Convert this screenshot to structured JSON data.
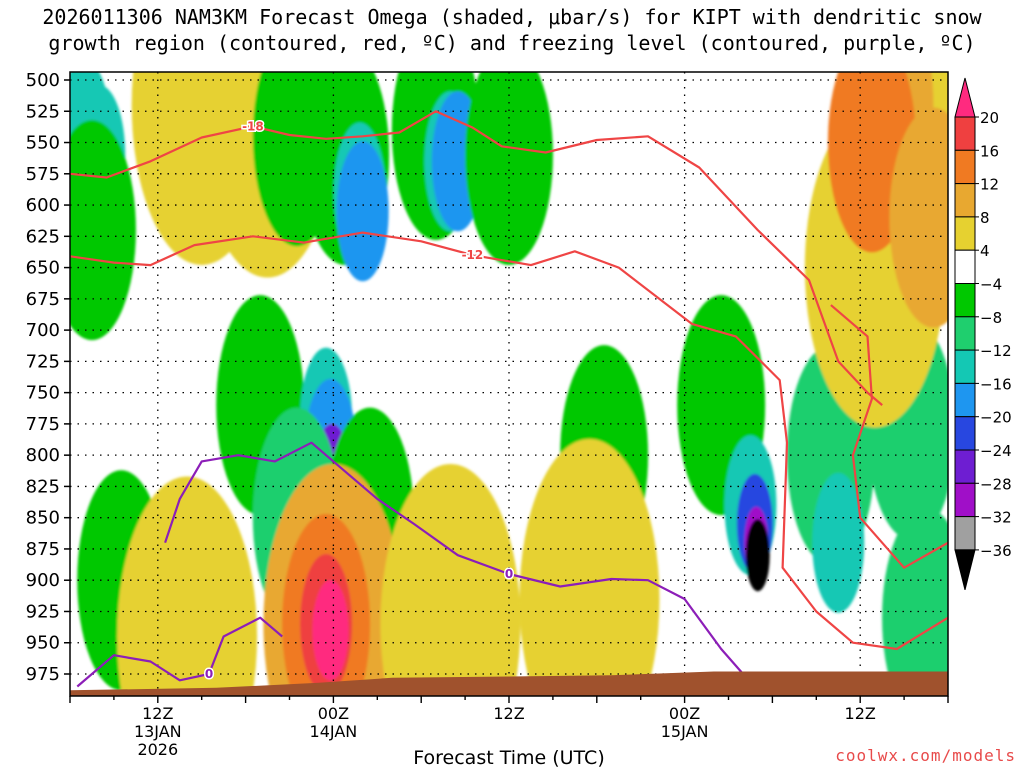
{
  "header": {
    "title_line1": "2026011306 NAM3KM Forecast Omega (shaded, μbar/s) for KIPT with dendritic snow",
    "title_line2": "growth region (contoured, red, ºC) and freezing level (contoured, purple, ºC)"
  },
  "credit": "coolwx.com/models",
  "chart_data": {
    "type": "heatmap",
    "title": "2026011306 NAM3KM Forecast Omega (shaded, μbar/s) for KIPT with dendritic snow growth region (contoured, red, ºC) and freezing level (contoured, purple, ºC)",
    "xlabel": "Forecast Time (UTC)",
    "ylabel": "",
    "x_hours": [
      0,
      60
    ],
    "y_levels": [
      500,
      525,
      550,
      575,
      600,
      625,
      650,
      675,
      700,
      725,
      750,
      775,
      800,
      825,
      850,
      875,
      900,
      925,
      950,
      975
    ],
    "ylim": [
      500,
      990
    ],
    "x_ticks": [
      {
        "hour": 6,
        "label": "12Z",
        "date": "13JAN",
        "year": "2026"
      },
      {
        "hour": 18,
        "label": "00Z",
        "date": "14JAN",
        "year": ""
      },
      {
        "hour": 30,
        "label": "12Z",
        "date": "",
        "year": ""
      },
      {
        "hour": 42,
        "label": "00Z",
        "date": "15JAN",
        "year": ""
      },
      {
        "hour": 54,
        "label": "12Z",
        "date": "",
        "year": ""
      }
    ],
    "colorbar": {
      "labels": [
        "20",
        "16",
        "12",
        "8",
        "4",
        "−4",
        "−8",
        "−12",
        "−16",
        "−20",
        "−24",
        "−28",
        "−32",
        "−36"
      ],
      "colors": [
        "#ff2a7f",
        "#ef4040",
        "#f07a22",
        "#e8a830",
        "#e6d130",
        "#ffffff",
        "#00c800",
        "#1fcf6e",
        "#14c8b4",
        "#1e96f0",
        "#2847e0",
        "#6e1ed2",
        "#a00fc8",
        "#a0a0a0",
        "#000000"
      ]
    },
    "omega_cells": [
      {
        "hour": 1.0,
        "level": 540,
        "value": -14
      },
      {
        "hour": 2.0,
        "level": 560,
        "value": -14
      },
      {
        "hour": 1.5,
        "level": 620,
        "value": -8
      },
      {
        "hour": 9.0,
        "level": 520,
        "value": 4
      },
      {
        "hour": 13.5,
        "level": 530,
        "value": 4
      },
      {
        "hour": 15.5,
        "level": 545,
        "value": -8
      },
      {
        "hour": 18.8,
        "level": 560,
        "value": -8
      },
      {
        "hour": 19.8,
        "level": 590,
        "value": -14
      },
      {
        "hour": 20.0,
        "level": 605,
        "value": -18
      },
      {
        "hour": 25.0,
        "level": 540,
        "value": -8
      },
      {
        "hour": 26.0,
        "level": 565,
        "value": -14
      },
      {
        "hour": 26.5,
        "level": 565,
        "value": -18
      },
      {
        "hour": 30.0,
        "level": 560,
        "value": -8
      },
      {
        "hour": 13.0,
        "level": 760,
        "value": -8
      },
      {
        "hour": 17.5,
        "level": 770,
        "value": -14
      },
      {
        "hour": 17.8,
        "level": 795,
        "value": -18
      },
      {
        "hour": 17.9,
        "level": 815,
        "value": -26
      },
      {
        "hour": 15.5,
        "level": 850,
        "value": -10
      },
      {
        "hour": 20.5,
        "level": 850,
        "value": -8
      },
      {
        "hour": 36.5,
        "level": 800,
        "value": -8
      },
      {
        "hour": 44.5,
        "level": 760,
        "value": -8
      },
      {
        "hour": 46.5,
        "level": 840,
        "value": -14
      },
      {
        "hour": 46.8,
        "level": 855,
        "value": -22
      },
      {
        "hour": 46.9,
        "level": 870,
        "value": -30
      },
      {
        "hour": 47.0,
        "level": 880,
        "value": -36
      },
      {
        "hour": 52.0,
        "level": 800,
        "value": -10
      },
      {
        "hour": 52.5,
        "level": 870,
        "value": -14
      },
      {
        "hour": 58.5,
        "level": 930,
        "value": -12
      },
      {
        "hour": 57.5,
        "level": 780,
        "value": -10
      },
      {
        "hour": 55.0,
        "level": 650,
        "value": 4
      },
      {
        "hour": 57.0,
        "level": 560,
        "value": 4
      },
      {
        "hour": 56.0,
        "level": 520,
        "value": 8
      },
      {
        "hour": 54.8,
        "level": 550,
        "value": 10
      },
      {
        "hour": 59.0,
        "level": 610,
        "value": 8
      },
      {
        "hour": 3.5,
        "level": 900,
        "value": -8
      },
      {
        "hour": 8.0,
        "level": 945,
        "value": 4
      },
      {
        "hour": 18.0,
        "level": 935,
        "value": 6
      },
      {
        "hour": 17.5,
        "level": 935,
        "value": 10
      },
      {
        "hour": 17.5,
        "level": 935,
        "value": 14
      },
      {
        "hour": 17.8,
        "level": 940,
        "value": 20
      },
      {
        "hour": 26.0,
        "level": 935,
        "value": 4
      },
      {
        "hour": 35.5,
        "level": 915,
        "value": 4
      }
    ],
    "contours": [
      {
        "name": "dendritic -18",
        "color": "#ef4545",
        "label": "-18",
        "points": [
          [
            0.0,
            575
          ],
          [
            2.5,
            578
          ],
          [
            5.5,
            565
          ],
          [
            9.0,
            546
          ],
          [
            12.5,
            537
          ],
          [
            15.0,
            544
          ],
          [
            17.5,
            547
          ],
          [
            20.0,
            545
          ],
          [
            22.5,
            542
          ],
          [
            25.0,
            525
          ],
          [
            27.5,
            538
          ],
          [
            29.5,
            553
          ],
          [
            32.5,
            558
          ],
          [
            36.0,
            548
          ],
          [
            39.5,
            545
          ],
          [
            43.0,
            570
          ],
          [
            47.0,
            620
          ],
          [
            50.5,
            660
          ],
          [
            52.5,
            725
          ],
          [
            54.5,
            750
          ],
          [
            55.5,
            760
          ]
        ]
      },
      {
        "name": "dendritic -12",
        "color": "#ef4545",
        "label": "-12",
        "points": [
          [
            0.0,
            641
          ],
          [
            3.0,
            646
          ],
          [
            5.5,
            648
          ],
          [
            8.5,
            632
          ],
          [
            12.5,
            625
          ],
          [
            16.0,
            630
          ],
          [
            20.0,
            622
          ],
          [
            24.0,
            629
          ],
          [
            27.5,
            640
          ],
          [
            31.5,
            648
          ],
          [
            34.5,
            637
          ],
          [
            37.5,
            650
          ],
          [
            42.5,
            695
          ],
          [
            45.5,
            705
          ],
          [
            48.5,
            740
          ],
          [
            49.0,
            790
          ],
          [
            48.7,
            890
          ],
          [
            51.0,
            925
          ],
          [
            53.5,
            950
          ],
          [
            56.5,
            955
          ],
          [
            60.0,
            930
          ]
        ]
      },
      {
        "name": "dendritic -12 lower",
        "color": "#ef4545",
        "label": "",
        "points": [
          [
            52.0,
            680
          ],
          [
            54.5,
            705
          ],
          [
            54.8,
            755
          ],
          [
            53.5,
            800
          ],
          [
            54.0,
            850
          ],
          [
            57.0,
            890
          ],
          [
            60.0,
            870
          ]
        ]
      },
      {
        "name": "freezing level 0",
        "color": "#8c1eb8",
        "label": "0",
        "points": [
          [
            6.5,
            870
          ],
          [
            7.5,
            835
          ],
          [
            9.0,
            805
          ],
          [
            11.5,
            800
          ],
          [
            14.0,
            805
          ],
          [
            16.5,
            790
          ],
          [
            19.0,
            815
          ],
          [
            21.0,
            835
          ],
          [
            23.5,
            855
          ],
          [
            26.5,
            880
          ],
          [
            30.0,
            895
          ],
          [
            33.5,
            905
          ],
          [
            37.0,
            899
          ],
          [
            39.5,
            900
          ],
          [
            42.0,
            915
          ],
          [
            44.5,
            955
          ],
          [
            46.0,
            975
          ]
        ]
      },
      {
        "name": "freezing level 0 lower",
        "color": "#8c1eb8",
        "label": "0",
        "points": [
          [
            0.5,
            985
          ],
          [
            3.0,
            960
          ],
          [
            5.5,
            965
          ],
          [
            7.5,
            980
          ],
          [
            9.5,
            975
          ],
          [
            10.5,
            945
          ],
          [
            13.0,
            930
          ],
          [
            14.5,
            945
          ]
        ]
      }
    ]
  }
}
